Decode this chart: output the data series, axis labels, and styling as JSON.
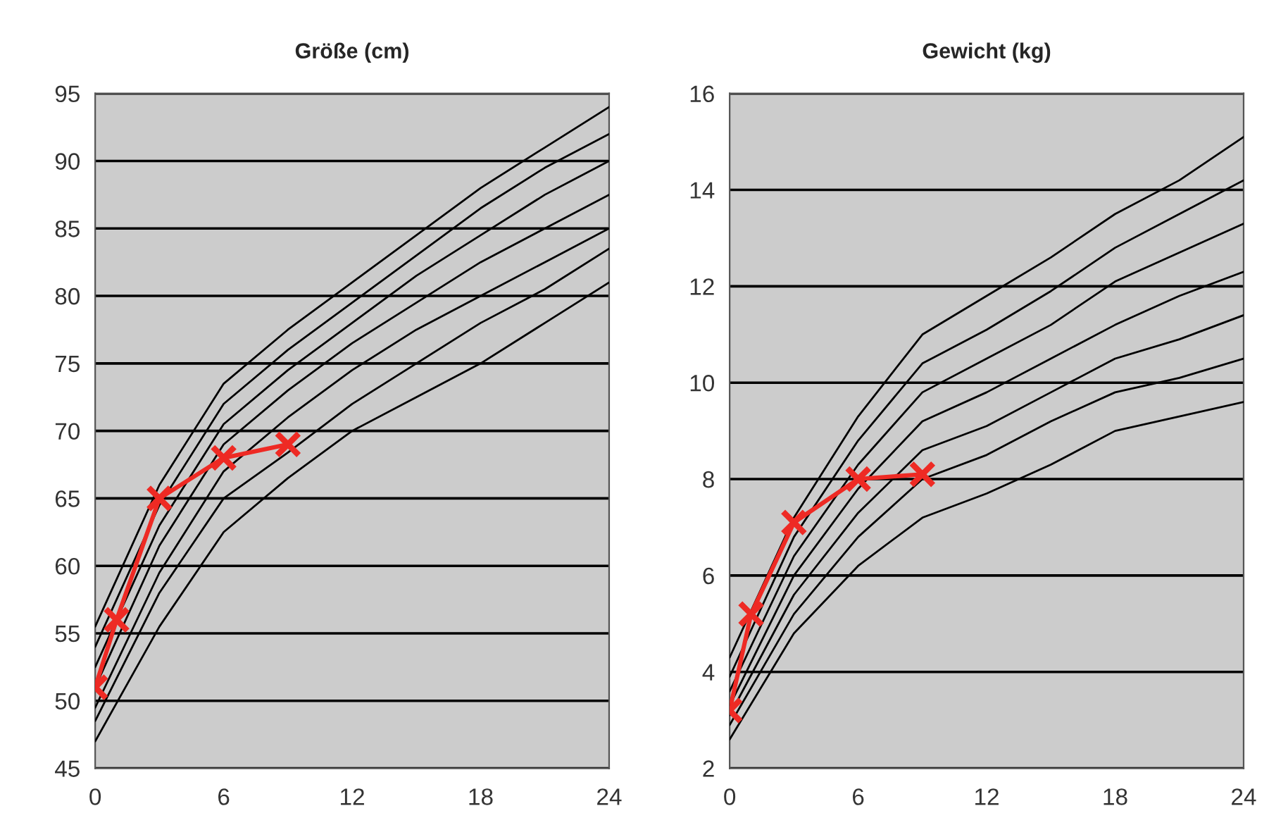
{
  "chart_data": [
    {
      "type": "line",
      "title": "Größe (cm)",
      "x": [
        0,
        3,
        6,
        9,
        12,
        15,
        18,
        21,
        24
      ],
      "xlim": [
        0,
        24
      ],
      "xticks": [
        0,
        6,
        12,
        18,
        24
      ],
      "ylim": [
        45,
        95
      ],
      "yticks": [
        45,
        50,
        55,
        60,
        65,
        70,
        75,
        80,
        85,
        90,
        95
      ],
      "grid": "y",
      "legend": false,
      "series": [
        {
          "color": "#000000",
          "marker": "none",
          "values": [
            55.5,
            66,
            73.5,
            77.5,
            81,
            84.5,
            88,
            91,
            94
          ]
        },
        {
          "color": "#000000",
          "marker": "none",
          "values": [
            54,
            64.5,
            72,
            76,
            79.5,
            83,
            86.5,
            89.5,
            92
          ]
        },
        {
          "color": "#000000",
          "marker": "none",
          "values": [
            52.5,
            63,
            70.5,
            74.5,
            78,
            81.5,
            84.5,
            87.5,
            90
          ]
        },
        {
          "color": "#000000",
          "marker": "none",
          "values": [
            51,
            61.5,
            69,
            73,
            76.5,
            79.5,
            82.5,
            85,
            87.5
          ]
        },
        {
          "color": "#000000",
          "marker": "none",
          "values": [
            49.5,
            59.5,
            67,
            71,
            74.5,
            77.5,
            80,
            82.5,
            85
          ]
        },
        {
          "color": "#000000",
          "marker": "none",
          "values": [
            48.5,
            58,
            65,
            68.4,
            72,
            75,
            78,
            80.5,
            83.5
          ]
        },
        {
          "color": "#000000",
          "marker": "none",
          "values": [
            47,
            55.5,
            62.5,
            66.5,
            70,
            72.5,
            75,
            78,
            81
          ]
        },
        {
          "color": "#ee2a24",
          "marker": "cross",
          "x": [
            0,
            1,
            3,
            6,
            9
          ],
          "values": [
            51,
            56,
            65,
            68,
            69
          ]
        }
      ]
    },
    {
      "type": "line",
      "title": "Gewicht (kg)",
      "x": [
        0,
        3,
        6,
        9,
        12,
        15,
        18,
        21,
        24
      ],
      "xlim": [
        0,
        24
      ],
      "xticks": [
        0,
        6,
        12,
        18,
        24
      ],
      "ylim": [
        2,
        16
      ],
      "yticks": [
        2,
        4,
        6,
        8,
        10,
        12,
        14,
        16
      ],
      "grid": "y",
      "legend": false,
      "series": [
        {
          "color": "#000000",
          "marker": "none",
          "values": [
            4.3,
            7.2,
            9.3,
            11,
            11.8,
            12.6,
            13.5,
            14.2,
            15.1
          ]
        },
        {
          "color": "#000000",
          "marker": "none",
          "values": [
            3.9,
            6.8,
            8.8,
            10.4,
            11.1,
            11.9,
            12.8,
            13.5,
            14.2
          ]
        },
        {
          "color": "#000000",
          "marker": "none",
          "values": [
            3.6,
            6.4,
            8.3,
            9.8,
            10.5,
            11.2,
            12.1,
            12.7,
            13.3
          ]
        },
        {
          "color": "#000000",
          "marker": "none",
          "values": [
            3.3,
            6.0,
            7.8,
            9.2,
            9.8,
            10.5,
            11.2,
            11.8,
            12.3
          ]
        },
        {
          "color": "#000000",
          "marker": "none",
          "values": [
            3.1,
            5.6,
            7.3,
            8.6,
            9.1,
            9.8,
            10.5,
            10.9,
            11.4
          ]
        },
        {
          "color": "#000000",
          "marker": "none",
          "values": [
            2.9,
            5.2,
            6.8,
            8.0,
            8.5,
            9.2,
            9.8,
            10.1,
            10.5
          ]
        },
        {
          "color": "#000000",
          "marker": "none",
          "values": [
            2.6,
            4.8,
            6.2,
            7.2,
            7.7,
            8.3,
            9.0,
            9.3,
            9.6
          ]
        },
        {
          "color": "#ee2a24",
          "marker": "cross",
          "x": [
            0,
            1,
            3,
            6,
            9
          ],
          "values": [
            3.2,
            5.2,
            7.1,
            8,
            8.1
          ]
        }
      ]
    }
  ]
}
